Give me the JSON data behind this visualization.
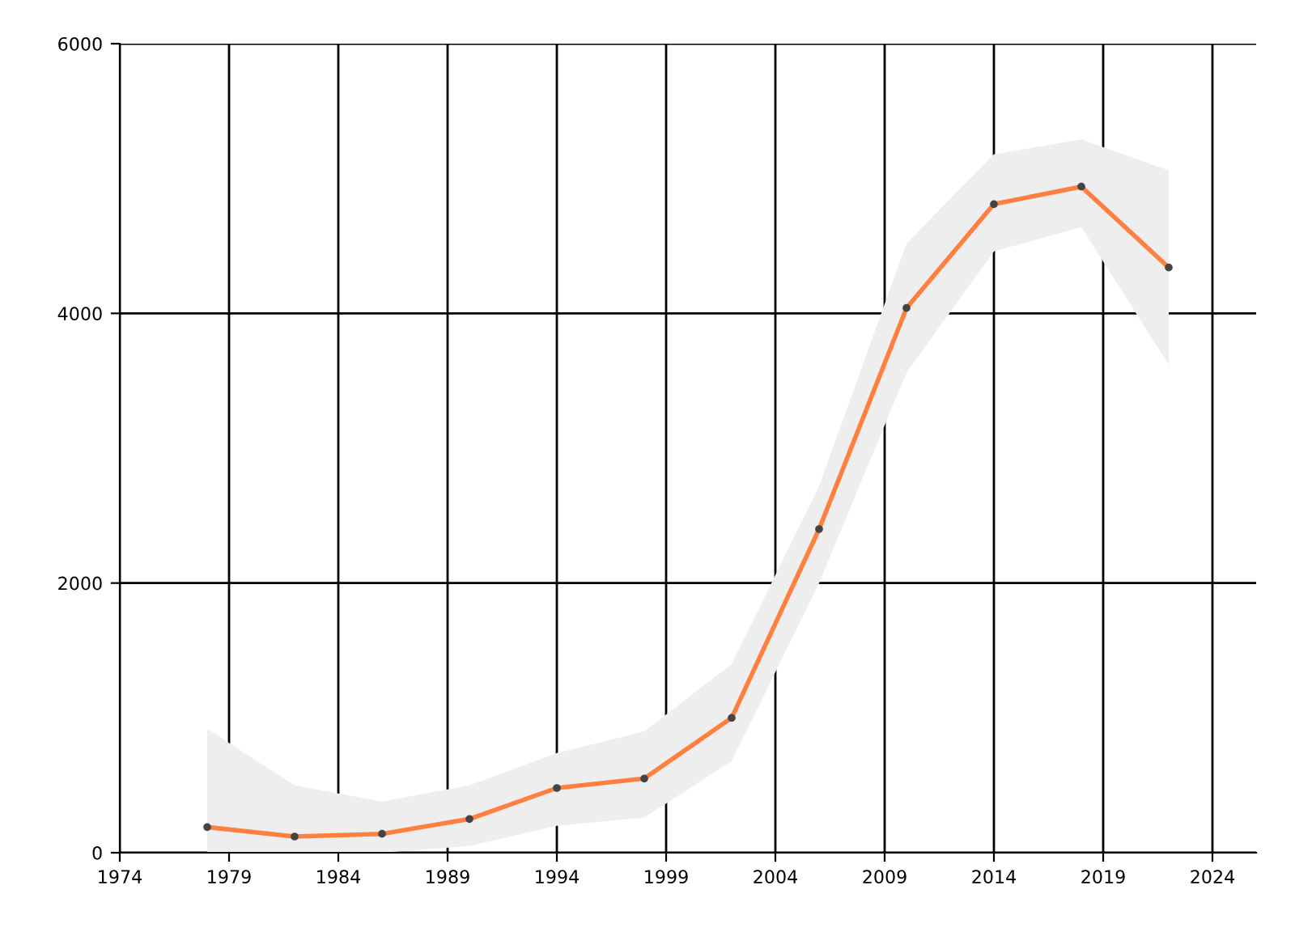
{
  "chart_data": {
    "type": "line",
    "x": [
      1978,
      1982,
      1986,
      1990,
      1994,
      1998,
      2002,
      2006,
      2010,
      2014,
      2018,
      2022
    ],
    "series": [
      {
        "color": "#ff7f3f",
        "values": [
          190,
          120,
          140,
          250,
          480,
          550,
          1000,
          2400,
          4040,
          4810,
          4940,
          4340
        ],
        "lower": [
          0,
          0,
          0,
          50,
          200,
          260,
          680,
          2000,
          3560,
          4460,
          4640,
          3620
        ],
        "upper": [
          920,
          500,
          380,
          500,
          740,
          900,
          1400,
          2720,
          4520,
          5180,
          5290,
          5060
        ]
      }
    ],
    "xlim": [
      1974,
      2026
    ],
    "xticks": [
      1974,
      1979,
      1984,
      1989,
      1994,
      1999,
      2004,
      2009,
      2014,
      2019,
      2024
    ],
    "ylim": [
      0,
      6000
    ],
    "yticks": [
      0,
      2000,
      4000,
      6000
    ],
    "grid": true,
    "marker": "circle",
    "line_style": "solid"
  }
}
